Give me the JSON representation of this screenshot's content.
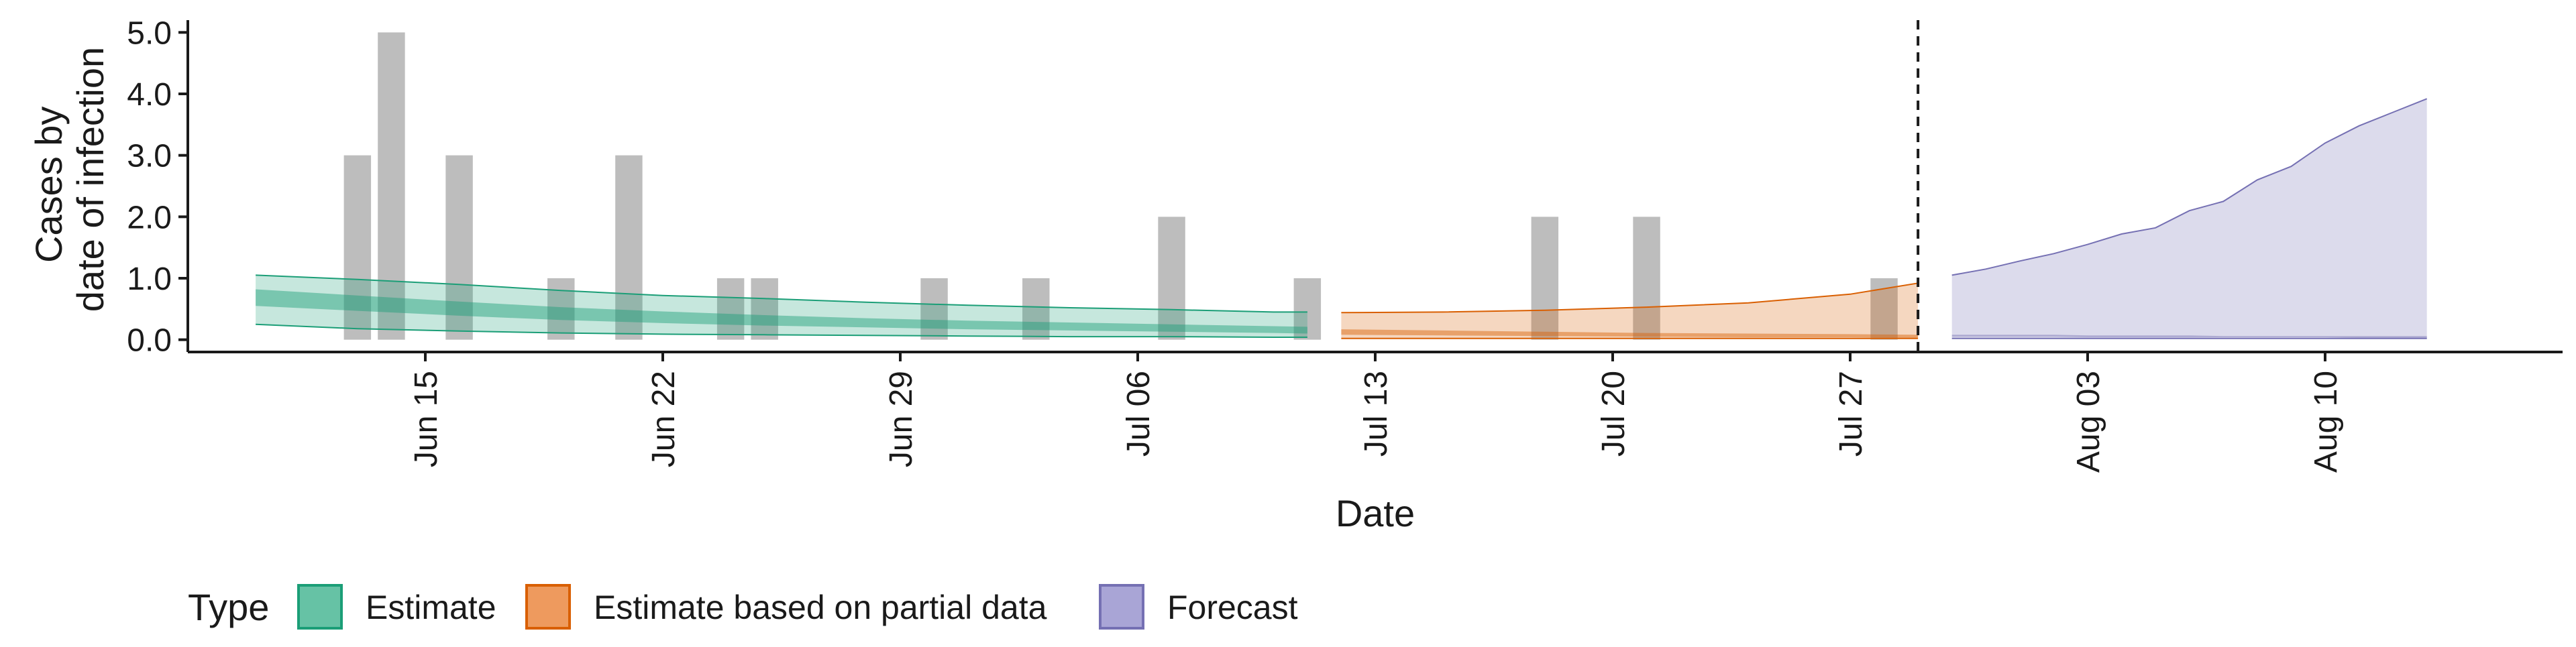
{
  "chart_data": {
    "type": "area",
    "xlabel": "Date",
    "ylabel_lines": [
      "Cases by",
      "date of infection"
    ],
    "x_axis": {
      "type": "date",
      "range": [
        "2024-06-08",
        "2024-08-17"
      ],
      "ticks": [
        {
          "date": "2024-06-15",
          "label": "Jun 15"
        },
        {
          "date": "2024-06-22",
          "label": "Jun 22"
        },
        {
          "date": "2024-06-29",
          "label": "Jun 29"
        },
        {
          "date": "2024-07-06",
          "label": "Jul 06"
        },
        {
          "date": "2024-07-13",
          "label": "Jul 13"
        },
        {
          "date": "2024-07-20",
          "label": "Jul 20"
        },
        {
          "date": "2024-07-27",
          "label": "Jul 27"
        },
        {
          "date": "2024-08-03",
          "label": "Aug 03"
        },
        {
          "date": "2024-08-10",
          "label": "Aug 10"
        }
      ]
    },
    "y_axis": {
      "range": [
        -0.2,
        5.2
      ],
      "ticks": [
        {
          "value": 0,
          "label": "0.0"
        },
        {
          "value": 1,
          "label": "1.0"
        },
        {
          "value": 2,
          "label": "2.0"
        },
        {
          "value": 3,
          "label": "3.0"
        },
        {
          "value": 4,
          "label": "4.0"
        },
        {
          "value": 5,
          "label": "5.0"
        }
      ]
    },
    "observed_cases": [
      {
        "date": "2024-06-13",
        "value": 3
      },
      {
        "date": "2024-06-14",
        "value": 5
      },
      {
        "date": "2024-06-16",
        "value": 3
      },
      {
        "date": "2024-06-19",
        "value": 1
      },
      {
        "date": "2024-06-21",
        "value": 3
      },
      {
        "date": "2024-06-24",
        "value": 1
      },
      {
        "date": "2024-06-25",
        "value": 1
      },
      {
        "date": "2024-06-30",
        "value": 1
      },
      {
        "date": "2024-07-03",
        "value": 1
      },
      {
        "date": "2024-07-07",
        "value": 2
      },
      {
        "date": "2024-07-11",
        "value": 1
      },
      {
        "date": "2024-07-18",
        "value": 2
      },
      {
        "date": "2024-07-21",
        "value": 2
      },
      {
        "date": "2024-07-28",
        "value": 1
      }
    ],
    "vline_date": "2024-07-29",
    "series": [
      {
        "name": "Estimate",
        "color": "#1b9e77",
        "dates": [
          "2024-06-10",
          "2024-06-13",
          "2024-06-16",
          "2024-06-19",
          "2024-06-22",
          "2024-06-25",
          "2024-06-28",
          "2024-07-01",
          "2024-07-04",
          "2024-07-07",
          "2024-07-10",
          "2024-07-11"
        ],
        "outer_lower": [
          0.25,
          0.18,
          0.14,
          0.11,
          0.09,
          0.08,
          0.07,
          0.06,
          0.05,
          0.05,
          0.04,
          0.04
        ],
        "outer_upper": [
          1.05,
          0.98,
          0.9,
          0.8,
          0.72,
          0.67,
          0.61,
          0.56,
          0.52,
          0.49,
          0.45,
          0.45
        ],
        "inner_lower": [
          0.55,
          0.47,
          0.39,
          0.32,
          0.27,
          0.23,
          0.2,
          0.17,
          0.15,
          0.13,
          0.11,
          0.1
        ],
        "inner_upper": [
          0.82,
          0.72,
          0.62,
          0.53,
          0.46,
          0.4,
          0.35,
          0.31,
          0.28,
          0.25,
          0.22,
          0.21
        ]
      },
      {
        "name": "Estimate based on partial data",
        "color": "#d95f02",
        "dates": [
          "2024-07-12",
          "2024-07-15",
          "2024-07-18",
          "2024-07-21",
          "2024-07-24",
          "2024-07-27",
          "2024-07-29"
        ],
        "outer_lower": [
          0.02,
          0.02,
          0.02,
          0.02,
          0.02,
          0.02,
          0.02
        ],
        "outer_upper": [
          0.44,
          0.45,
          0.48,
          0.53,
          0.6,
          0.74,
          0.92
        ],
        "inner_lower": [
          0.08,
          0.07,
          0.06,
          0.05,
          0.04,
          0.04,
          0.03
        ],
        "inner_upper": [
          0.17,
          0.15,
          0.13,
          0.11,
          0.1,
          0.09,
          0.08
        ]
      },
      {
        "name": "Forecast",
        "color": "#7570b3",
        "dates": [
          "2024-07-30",
          "2024-07-31",
          "2024-08-01",
          "2024-08-02",
          "2024-08-03",
          "2024-08-04",
          "2024-08-05",
          "2024-08-06",
          "2024-08-07",
          "2024-08-08",
          "2024-08-09",
          "2024-08-10",
          "2024-08-11",
          "2024-08-12",
          "2024-08-13"
        ],
        "outer_lower": [
          0.02,
          0.02,
          0.02,
          0.02,
          0.02,
          0.02,
          0.02,
          0.02,
          0.02,
          0.02,
          0.02,
          0.02,
          0.02,
          0.02,
          0.02
        ],
        "outer_upper": [
          1.05,
          1.15,
          1.28,
          1.4,
          1.55,
          1.72,
          1.82,
          2.1,
          2.25,
          2.6,
          2.82,
          3.2,
          3.48,
          3.7,
          3.92
        ],
        "inner_lower": [
          0.05,
          0.05,
          0.05,
          0.05,
          0.04,
          0.04,
          0.04,
          0.04,
          0.04,
          0.04,
          0.04,
          0.04,
          0.03,
          0.03,
          0.03
        ],
        "inner_upper": [
          0.08,
          0.08,
          0.08,
          0.08,
          0.07,
          0.07,
          0.07,
          0.07,
          0.06,
          0.06,
          0.06,
          0.06,
          0.06,
          0.06,
          0.06
        ]
      }
    ],
    "legend": {
      "title": "Type",
      "position": "bottom-left",
      "items": [
        {
          "label": "Estimate",
          "fill": "#66c2a5",
          "stroke": "#1b9e77"
        },
        {
          "label": "Estimate based on partial data",
          "fill": "#ee9a5e",
          "stroke": "#d95f02"
        },
        {
          "label": "Forecast",
          "fill": "#a9a5d6",
          "stroke": "#7570b3"
        }
      ]
    },
    "grid": false
  }
}
